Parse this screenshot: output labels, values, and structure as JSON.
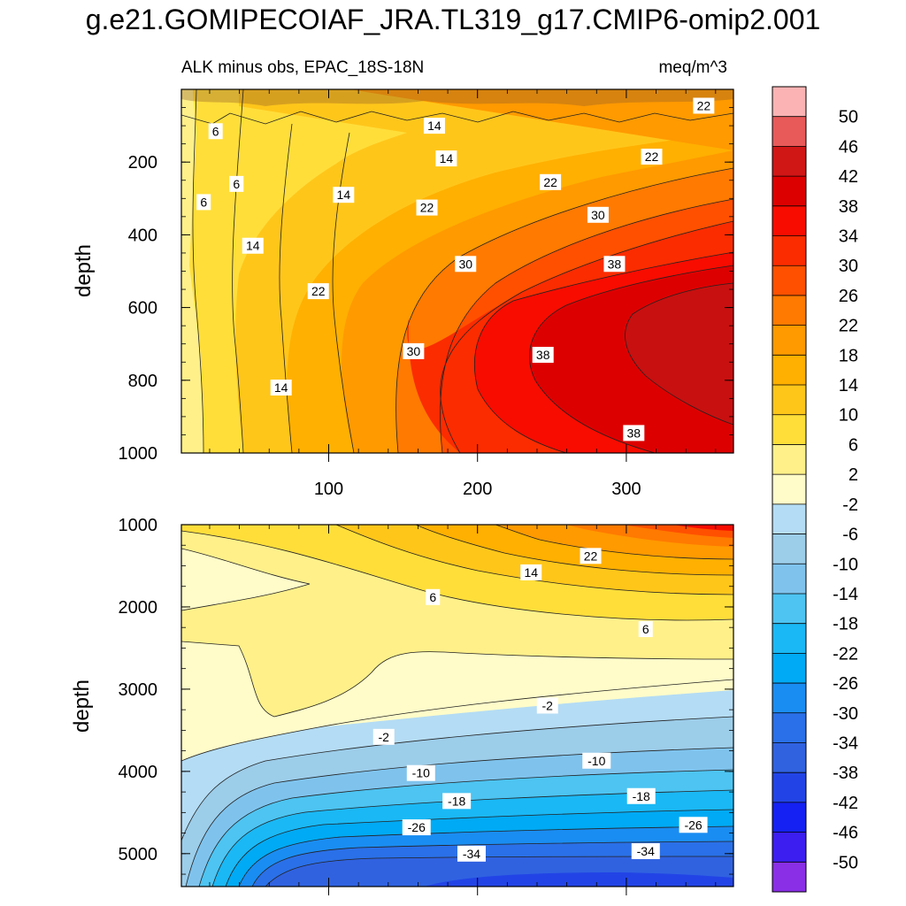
{
  "title": "g.e21.GOMIPECOIAF_JRA.TL319_g17.CMIP6-omip2.001",
  "chart_data": {
    "type": "heatmap",
    "title": "g.e21.GOMIPECOIAF_JRA.TL319_g17.CMIP6-omip2.001",
    "subtitle_left": "ALK minus obs, EPAC_18S-18N",
    "units": "meq/m^3",
    "ylabel": "depth",
    "x_tick_labels": [
      "100",
      "200",
      "300"
    ],
    "x_ticks": [
      100,
      200,
      300
    ],
    "xlim": [
      1,
      372
    ],
    "panels": [
      {
        "name": "upper",
        "ylim": [
          0,
          1000
        ],
        "y_ticks": [
          200,
          400,
          600,
          800,
          1000
        ],
        "y_tick_labels": [
          "200",
          "400",
          "600",
          "800",
          "1000"
        ],
        "contour_labels": [
          {
            "text": "6",
            "x": 24,
            "depth": 115
          },
          {
            "text": "6",
            "x": 38,
            "depth": 260
          },
          {
            "text": "6",
            "x": 16,
            "depth": 310
          },
          {
            "text": "14",
            "x": 171,
            "depth": 100
          },
          {
            "text": "14",
            "x": 179,
            "depth": 190
          },
          {
            "text": "14",
            "x": 110,
            "depth": 290
          },
          {
            "text": "14",
            "x": 49,
            "depth": 430
          },
          {
            "text": "14",
            "x": 68,
            "depth": 820
          },
          {
            "text": "22",
            "x": 352,
            "depth": 45
          },
          {
            "text": "22",
            "x": 317,
            "depth": 185
          },
          {
            "text": "22",
            "x": 249,
            "depth": 255
          },
          {
            "text": "22",
            "x": 166,
            "depth": 325
          },
          {
            "text": "22",
            "x": 93,
            "depth": 555
          },
          {
            "text": "30",
            "x": 281,
            "depth": 345
          },
          {
            "text": "30",
            "x": 192,
            "depth": 480
          },
          {
            "text": "30",
            "x": 157,
            "depth": 720
          },
          {
            "text": "38",
            "x": 292,
            "depth": 480
          },
          {
            "text": "38",
            "x": 244,
            "depth": 730
          },
          {
            "text": "38",
            "x": 305,
            "depth": 945
          }
        ]
      },
      {
        "name": "lower",
        "ylim": [
          1000,
          5400
        ],
        "y_ticks": [
          1000,
          2000,
          3000,
          4000,
          5000
        ],
        "y_tick_labels": [
          "1000",
          "2000",
          "3000",
          "4000",
          "5000"
        ],
        "contour_labels": [
          {
            "text": "22",
            "x": 276,
            "depth": 1380
          },
          {
            "text": "14",
            "x": 236,
            "depth": 1580
          },
          {
            "text": "6",
            "x": 170,
            "depth": 1880
          },
          {
            "text": "6",
            "x": 313,
            "depth": 2270
          },
          {
            "text": "-2",
            "x": 247,
            "depth": 3200
          },
          {
            "text": "-2",
            "x": 137,
            "depth": 3580
          },
          {
            "text": "-10",
            "x": 280,
            "depth": 3870
          },
          {
            "text": "-10",
            "x": 162,
            "depth": 4020
          },
          {
            "text": "-18",
            "x": 310,
            "depth": 4300
          },
          {
            "text": "-18",
            "x": 186,
            "depth": 4360
          },
          {
            "text": "-26",
            "x": 345,
            "depth": 4650
          },
          {
            "text": "-26",
            "x": 159,
            "depth": 4680
          },
          {
            "text": "-34",
            "x": 196,
            "depth": 5000
          },
          {
            "text": "-34",
            "x": 313,
            "depth": 4970
          }
        ]
      }
    ],
    "colorbar": {
      "labels": [
        "50",
        "46",
        "42",
        "38",
        "34",
        "30",
        "26",
        "22",
        "18",
        "14",
        "10",
        "6",
        "2",
        "-2",
        "-6",
        "-10",
        "-14",
        "-18",
        "-22",
        "-26",
        "-30",
        "-34",
        "-38",
        "-42",
        "-46",
        "-50"
      ],
      "colors": [
        "#fbb3b3",
        "#e85a5a",
        "#d11616",
        "#dd0000",
        "#f80c00",
        "#fb2c00",
        "#ff5000",
        "#ff7a00",
        "#ff9a00",
        "#ffb000",
        "#ffc61a",
        "#ffde3a",
        "#fff08a",
        "#fffcc9",
        "#b4dcf4",
        "#9ccde9",
        "#7fc3ed",
        "#4dc4f2",
        "#1ab8f5",
        "#00aaf4",
        "#1a8df2",
        "#2a70e8",
        "#3062e0",
        "#2244e6",
        "#1521f2",
        "#3c1ef0",
        "#8a2fe6"
      ]
    }
  }
}
